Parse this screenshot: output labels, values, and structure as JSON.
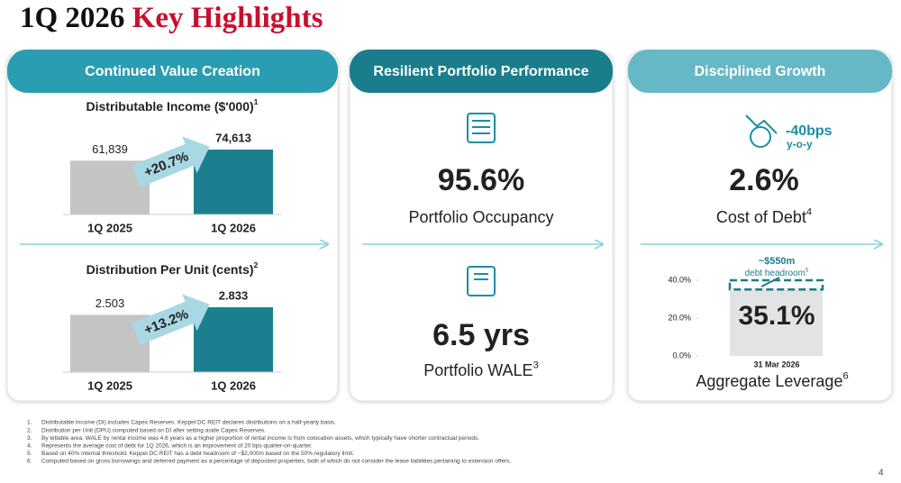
{
  "title": {
    "prefix": "1Q 2026",
    "highlight": "Key Highlights"
  },
  "panels": [
    {
      "heading": "Continued Value Creation",
      "charts": [
        {
          "type": "bar",
          "title": "Distributable Income ($'000)",
          "title_sup": "1",
          "categories": [
            "1Q 2025",
            "1Q 2026"
          ],
          "values": [
            61839,
            74613
          ],
          "value_labels": [
            "61,839",
            "74,613"
          ],
          "colors": [
            "#c4c4c4",
            "#1b7f8f"
          ],
          "change": "+20.7%"
        },
        {
          "type": "bar",
          "title": "Distribution Per Unit (cents)",
          "title_sup": "2",
          "categories": [
            "1Q 2025",
            "1Q 2026"
          ],
          "values": [
            2.503,
            2.833
          ],
          "value_labels": [
            "2.503",
            "2.833"
          ],
          "colors": [
            "#c4c4c4",
            "#1b7f8f"
          ],
          "change": "+13.2%"
        }
      ]
    },
    {
      "heading": "Resilient Portfolio Performance",
      "metrics": [
        {
          "value": "95.6%",
          "label": "Portfolio Occupancy"
        },
        {
          "value": "6.5 yrs",
          "label": "Portfolio WALE",
          "sup": "3"
        }
      ]
    },
    {
      "heading": "Disciplined Growth",
      "cost": {
        "change": "-40bps",
        "change_sub": "y-o-y",
        "value": "2.6%",
        "label": "Cost of Debt",
        "sup": "4"
      },
      "leverage": {
        "type": "bar",
        "categories": [
          "31 Mar 2026"
        ],
        "values": [
          35.1
        ],
        "value_labels": [
          "35.1%"
        ],
        "color": "#e3e3e3",
        "ylim": [
          0,
          40
        ],
        "yticks": [
          {
            "value": 0,
            "label": "0.0%"
          },
          {
            "value": 20,
            "label": "20.0%"
          },
          {
            "value": 40,
            "label": "40.0%"
          }
        ],
        "headroom": "~$550m",
        "headroom_sub": "debt headroom",
        "headroom_sup": "5",
        "label": "Aggregate Leverage",
        "sup": "6"
      }
    }
  ],
  "footnotes": [
    {
      "number": "1.",
      "text": "Distributable Income (DI) includes Capex Reserves. Keppel DC REIT declares distributions on a half-yearly basis."
    },
    {
      "number": "2.",
      "text": "Distribution per Unit (DPU) computed based on DI after setting aside Capex Reserves."
    },
    {
      "number": "3.",
      "text": "By lettable area. WALE by rental income was 4.6 years as a higher proportion of rental income is from colocation assets, which typically have shorter contractual periods."
    },
    {
      "number": "4.",
      "text": "Represents the average cost of debt for 1Q 2026, which is an improvement of 20 bps quarter-on-quarter."
    },
    {
      "number": "5.",
      "text": "Based on 40% internal threshold. Keppel DC REIT has a debt headroom of ~$2,000m based on the 50% regulatory limit."
    },
    {
      "number": "6.",
      "text": "Computed based on gross borrowings and deferred payment as a percentage of deposited properties, both of which do not consider the lease liabilities pertaining to extension offers."
    }
  ],
  "page_number": "4"
}
